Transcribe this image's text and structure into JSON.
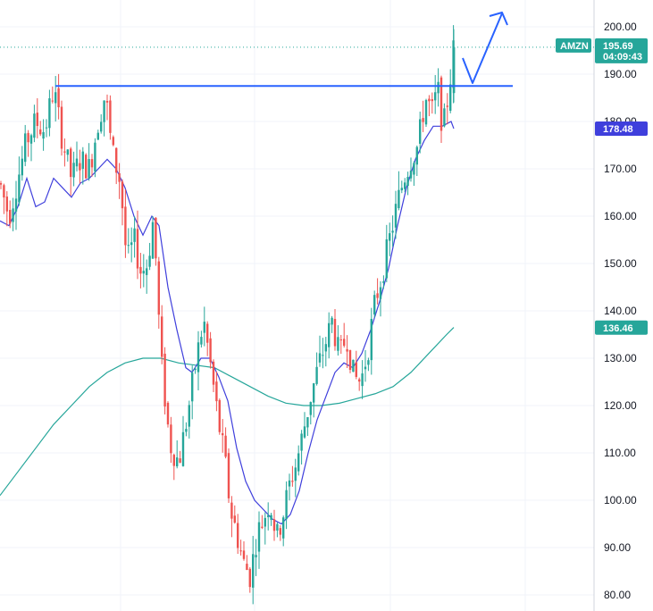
{
  "chart_data": {
    "type": "candlestick",
    "symbol": "AMZN",
    "y_axis": {
      "ticks": [
        "200.00",
        "190.00",
        "180.00",
        "170.00",
        "160.00",
        "150.00",
        "140.00",
        "130.00",
        "120.00",
        "110.00",
        "100.00",
        "90.00",
        "80.00"
      ],
      "ylim": [
        79,
        203
      ]
    },
    "grid": true,
    "last_price": {
      "value": 195.69,
      "label": "195.69",
      "timer": "04:09:43",
      "color": "#26a69a"
    },
    "ma_short_last": {
      "value": 178.48,
      "label": "178.48",
      "color": "#3f3fdc"
    },
    "ma_long_last": {
      "value": 136.46,
      "label": "136.46",
      "color": "#26a69a"
    },
    "resistance_level": 187.5,
    "colors": {
      "up": "#26a69a",
      "down": "#ef5350",
      "ma_short": "#3f3fdc",
      "ma_long": "#26a69a",
      "annotation": "#2962ff"
    },
    "price_path": [
      [
        0,
        167
      ],
      [
        10,
        160
      ],
      [
        20,
        168
      ],
      [
        30,
        176
      ],
      [
        40,
        180
      ],
      [
        50,
        178
      ],
      [
        60,
        187
      ],
      [
        70,
        176
      ],
      [
        80,
        168
      ],
      [
        90,
        172
      ],
      [
        100,
        170
      ],
      [
        110,
        180
      ],
      [
        118,
        186
      ],
      [
        125,
        174
      ],
      [
        135,
        167
      ],
      [
        142,
        150
      ],
      [
        150,
        155
      ],
      [
        158,
        148
      ],
      [
        165,
        150
      ],
      [
        172,
        160
      ],
      [
        180,
        130
      ],
      [
        190,
        112
      ],
      [
        200,
        108
      ],
      [
        210,
        118
      ],
      [
        220,
        130
      ],
      [
        228,
        138
      ],
      [
        236,
        128
      ],
      [
        245,
        116
      ],
      [
        252,
        108
      ],
      [
        258,
        98
      ],
      [
        265,
        93
      ],
      [
        272,
        87
      ],
      [
        280,
        84
      ],
      [
        288,
        93
      ],
      [
        295,
        96
      ],
      [
        302,
        100
      ],
      [
        310,
        92
      ],
      [
        318,
        98
      ],
      [
        325,
        104
      ],
      [
        332,
        108
      ],
      [
        340,
        115
      ],
      [
        348,
        122
      ],
      [
        356,
        128
      ],
      [
        364,
        133
      ],
      [
        372,
        138
      ],
      [
        380,
        130
      ],
      [
        388,
        135
      ],
      [
        396,
        126
      ],
      [
        404,
        125
      ],
      [
        412,
        132
      ],
      [
        420,
        142
      ],
      [
        428,
        148
      ],
      [
        436,
        155
      ],
      [
        444,
        162
      ],
      [
        452,
        168
      ],
      [
        460,
        172
      ],
      [
        468,
        175
      ],
      [
        476,
        185
      ],
      [
        484,
        182
      ],
      [
        490,
        187
      ],
      [
        496,
        178
      ],
      [
        502,
        186
      ],
      [
        508,
        195.7
      ]
    ],
    "ma_short": [
      [
        0,
        159
      ],
      [
        10,
        158
      ],
      [
        20,
        162
      ],
      [
        30,
        168
      ],
      [
        40,
        162
      ],
      [
        50,
        163
      ],
      [
        60,
        168
      ],
      [
        70,
        166
      ],
      [
        80,
        164
      ],
      [
        90,
        167
      ],
      [
        100,
        168
      ],
      [
        110,
        170
      ],
      [
        120,
        172
      ],
      [
        130,
        170
      ],
      [
        140,
        166
      ],
      [
        150,
        160
      ],
      [
        160,
        156
      ],
      [
        170,
        160
      ],
      [
        178,
        158
      ],
      [
        188,
        145
      ],
      [
        198,
        136
      ],
      [
        208,
        128
      ],
      [
        215,
        127
      ],
      [
        225,
        130
      ],
      [
        235,
        130
      ],
      [
        245,
        126
      ],
      [
        255,
        121
      ],
      [
        265,
        111
      ],
      [
        275,
        104
      ],
      [
        285,
        100
      ],
      [
        295,
        98
      ],
      [
        305,
        96
      ],
      [
        315,
        95
      ],
      [
        325,
        97
      ],
      [
        335,
        102
      ],
      [
        345,
        110
      ],
      [
        355,
        117
      ],
      [
        365,
        122
      ],
      [
        375,
        127
      ],
      [
        385,
        129
      ],
      [
        395,
        128
      ],
      [
        405,
        131
      ],
      [
        415,
        136
      ],
      [
        425,
        142
      ],
      [
        435,
        149
      ],
      [
        445,
        158
      ],
      [
        455,
        166
      ],
      [
        465,
        172
      ],
      [
        475,
        176
      ],
      [
        485,
        179
      ],
      [
        495,
        179
      ],
      [
        505,
        180
      ],
      [
        508,
        178.5
      ]
    ],
    "ma_long": [
      [
        0,
        101
      ],
      [
        20,
        106
      ],
      [
        40,
        111
      ],
      [
        60,
        116
      ],
      [
        80,
        120
      ],
      [
        100,
        124
      ],
      [
        120,
        127
      ],
      [
        140,
        129
      ],
      [
        160,
        130
      ],
      [
        180,
        130
      ],
      [
        200,
        129
      ],
      [
        220,
        128.5
      ],
      [
        240,
        128
      ],
      [
        260,
        126
      ],
      [
        280,
        124
      ],
      [
        300,
        122
      ],
      [
        320,
        120.5
      ],
      [
        340,
        120
      ],
      [
        360,
        120
      ],
      [
        380,
        120.5
      ],
      [
        400,
        121.5
      ],
      [
        420,
        122.5
      ],
      [
        440,
        124
      ],
      [
        460,
        127
      ],
      [
        480,
        131
      ],
      [
        500,
        135
      ],
      [
        508,
        136.5
      ]
    ]
  }
}
